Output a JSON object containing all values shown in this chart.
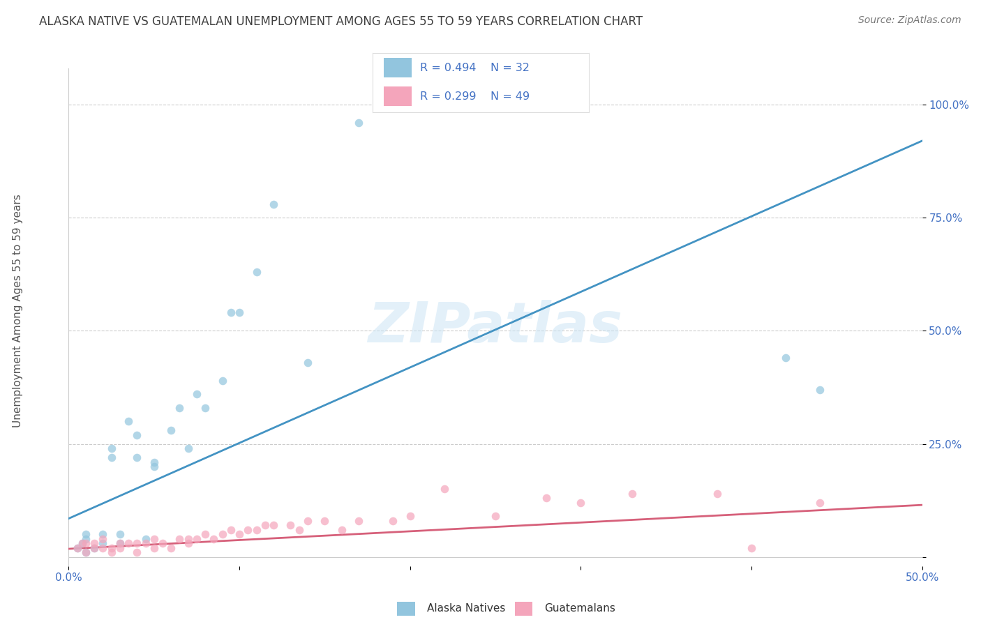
{
  "title": "ALASKA NATIVE VS GUATEMALAN UNEMPLOYMENT AMONG AGES 55 TO 59 YEARS CORRELATION CHART",
  "source": "Source: ZipAtlas.com",
  "ylabel": "Unemployment Among Ages 55 to 59 years",
  "xlim": [
    0.0,
    0.5
  ],
  "ylim": [
    -0.02,
    1.08
  ],
  "xticks": [
    0.0,
    0.1,
    0.2,
    0.3,
    0.4,
    0.5
  ],
  "xticklabels": [
    "0.0%",
    "",
    "",
    "",
    "",
    "50.0%"
  ],
  "yticks": [
    0.0,
    0.25,
    0.5,
    0.75,
    1.0
  ],
  "yticklabels": [
    "",
    "25.0%",
    "50.0%",
    "75.0%",
    "100.0%"
  ],
  "alaska_color": "#92c5de",
  "guatemalan_color": "#f4a5bb",
  "alaska_line_color": "#4393c3",
  "guatemalan_line_color": "#d6607a",
  "watermark": "ZIPatlas",
  "legend_R_alaska": "R = 0.494",
  "legend_N_alaska": "N = 32",
  "legend_R_guatemalan": "R = 0.299",
  "legend_N_guatemalan": "N = 49",
  "alaska_scatter_x": [
    0.005,
    0.008,
    0.01,
    0.01,
    0.01,
    0.015,
    0.02,
    0.02,
    0.025,
    0.025,
    0.03,
    0.03,
    0.035,
    0.04,
    0.04,
    0.045,
    0.05,
    0.05,
    0.06,
    0.065,
    0.07,
    0.075,
    0.08,
    0.09,
    0.095,
    0.1,
    0.11,
    0.12,
    0.14,
    0.17,
    0.42,
    0.44
  ],
  "alaska_scatter_y": [
    0.02,
    0.03,
    0.01,
    0.04,
    0.05,
    0.02,
    0.03,
    0.05,
    0.22,
    0.24,
    0.03,
    0.05,
    0.3,
    0.27,
    0.22,
    0.04,
    0.2,
    0.21,
    0.28,
    0.33,
    0.24,
    0.36,
    0.33,
    0.39,
    0.54,
    0.54,
    0.63,
    0.78,
    0.43,
    0.96,
    0.44,
    0.37
  ],
  "guatemalan_scatter_x": [
    0.005,
    0.008,
    0.01,
    0.01,
    0.015,
    0.015,
    0.02,
    0.02,
    0.025,
    0.025,
    0.03,
    0.03,
    0.035,
    0.04,
    0.04,
    0.045,
    0.05,
    0.05,
    0.055,
    0.06,
    0.065,
    0.07,
    0.07,
    0.075,
    0.08,
    0.085,
    0.09,
    0.095,
    0.1,
    0.105,
    0.11,
    0.115,
    0.12,
    0.13,
    0.135,
    0.14,
    0.15,
    0.16,
    0.17,
    0.19,
    0.2,
    0.22,
    0.25,
    0.28,
    0.3,
    0.33,
    0.38,
    0.4,
    0.44
  ],
  "guatemalan_scatter_y": [
    0.02,
    0.03,
    0.01,
    0.03,
    0.02,
    0.03,
    0.02,
    0.04,
    0.01,
    0.02,
    0.02,
    0.03,
    0.03,
    0.01,
    0.03,
    0.03,
    0.02,
    0.04,
    0.03,
    0.02,
    0.04,
    0.03,
    0.04,
    0.04,
    0.05,
    0.04,
    0.05,
    0.06,
    0.05,
    0.06,
    0.06,
    0.07,
    0.07,
    0.07,
    0.06,
    0.08,
    0.08,
    0.06,
    0.08,
    0.08,
    0.09,
    0.15,
    0.09,
    0.13,
    0.12,
    0.14,
    0.14,
    0.02,
    0.12
  ],
  "alaska_line_x": [
    0.0,
    0.5
  ],
  "alaska_line_y": [
    0.085,
    0.92
  ],
  "guatemalan_line_x": [
    0.0,
    0.5
  ],
  "guatemalan_line_y": [
    0.018,
    0.115
  ],
  "background_color": "#ffffff",
  "grid_color": "#cccccc",
  "title_color": "#404040",
  "axis_color": "#4472c4",
  "tick_color": "#4472c4",
  "label_color": "#555555"
}
